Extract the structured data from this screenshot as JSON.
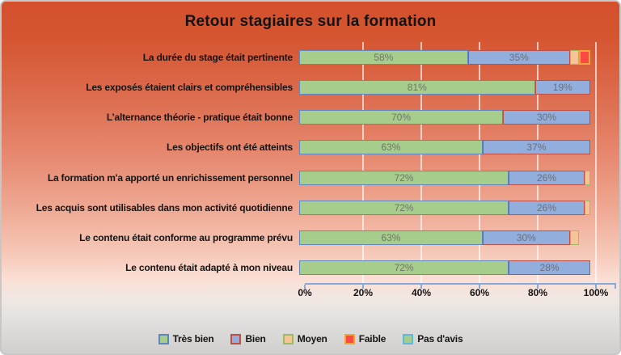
{
  "slide": {
    "title": "Retour stagiaires sur la formation"
  },
  "colors": {
    "background_top": "#d3502c",
    "background_bottom": "#d1cfce",
    "axis": "#86aadb",
    "gridline": "rgba(255,255,255,0.65)",
    "bar_value_label": "#5f5f5f",
    "text": "#141414"
  },
  "chart_data": {
    "type": "bar",
    "orientation": "horizontal",
    "stacked": true,
    "title": "Retour stagiaires sur la formation",
    "xlabel": "",
    "ylabel": "",
    "xlim": [
      0,
      100
    ],
    "x_ticks": [
      "0%",
      "20%",
      "40%",
      "60%",
      "80%",
      "100%"
    ],
    "grid": true,
    "legend_position": "bottom",
    "series_meta": [
      {
        "key": "tres_bien",
        "name": "Très bien",
        "fill": "#a7cd8d",
        "border": "#5f87bd"
      },
      {
        "key": "bien",
        "name": "Bien",
        "fill": "#92aedd",
        "border": "#bd4f45"
      },
      {
        "key": "moyen",
        "name": "Moyen",
        "fill": "#f6c597",
        "border": "#9dba64"
      },
      {
        "key": "faible",
        "name": "Faible",
        "fill": "#fb4a44",
        "border": "#efa43c"
      },
      {
        "key": "pas_davis",
        "name": "Pas d'avis",
        "fill": "#a7cd8d",
        "border": "#62b8d9"
      }
    ],
    "categories": [
      "La durée du stage était pertinente",
      "Les exposés étaient clairs et compréhensibles",
      "L’alternance théorie - pratique était bonne",
      "Les objectifs ont été atteints",
      "La formation m'a apporté un enrichissement personnel",
      "Les acquis sont utilisables dans mon activité quotidienne",
      "Le contenu était conforme au programme prévu",
      "Le contenu était adapté à mon niveau"
    ],
    "rows": [
      {
        "segments": [
          {
            "series": "tres_bien",
            "value": 58,
            "label": "58%"
          },
          {
            "series": "bien",
            "value": 35,
            "label": "35%"
          },
          {
            "series": "moyen",
            "value": 3,
            "label": ""
          },
          {
            "series": "faible",
            "value": 4,
            "label": ""
          }
        ]
      },
      {
        "segments": [
          {
            "series": "tres_bien",
            "value": 81,
            "label": "81%"
          },
          {
            "series": "bien",
            "value": 19,
            "label": "19%"
          }
        ]
      },
      {
        "segments": [
          {
            "series": "tres_bien",
            "value": 70,
            "label": "70%"
          },
          {
            "series": "bien",
            "value": 30,
            "label": "30%"
          }
        ]
      },
      {
        "segments": [
          {
            "series": "tres_bien",
            "value": 63,
            "label": "63%"
          },
          {
            "series": "bien",
            "value": 37,
            "label": "37%"
          }
        ]
      },
      {
        "segments": [
          {
            "series": "tres_bien",
            "value": 72,
            "label": "72%"
          },
          {
            "series": "bien",
            "value": 26,
            "label": "26%"
          },
          {
            "series": "moyen",
            "value": 2,
            "label": ""
          }
        ]
      },
      {
        "segments": [
          {
            "series": "tres_bien",
            "value": 72,
            "label": "72%"
          },
          {
            "series": "bien",
            "value": 26,
            "label": "26%"
          },
          {
            "series": "moyen",
            "value": 2,
            "label": ""
          }
        ]
      },
      {
        "segments": [
          {
            "series": "tres_bien",
            "value": 63,
            "label": "63%"
          },
          {
            "series": "bien",
            "value": 30,
            "label": "30%"
          },
          {
            "series": "moyen",
            "value": 3,
            "label": ""
          }
        ]
      },
      {
        "segments": [
          {
            "series": "tres_bien",
            "value": 72,
            "label": "72%"
          },
          {
            "series": "bien",
            "value": 28,
            "label": "28%"
          }
        ]
      }
    ],
    "legend": [
      "Très bien",
      "Bien",
      "Moyen",
      "Faible",
      "Pas d'avis"
    ]
  }
}
